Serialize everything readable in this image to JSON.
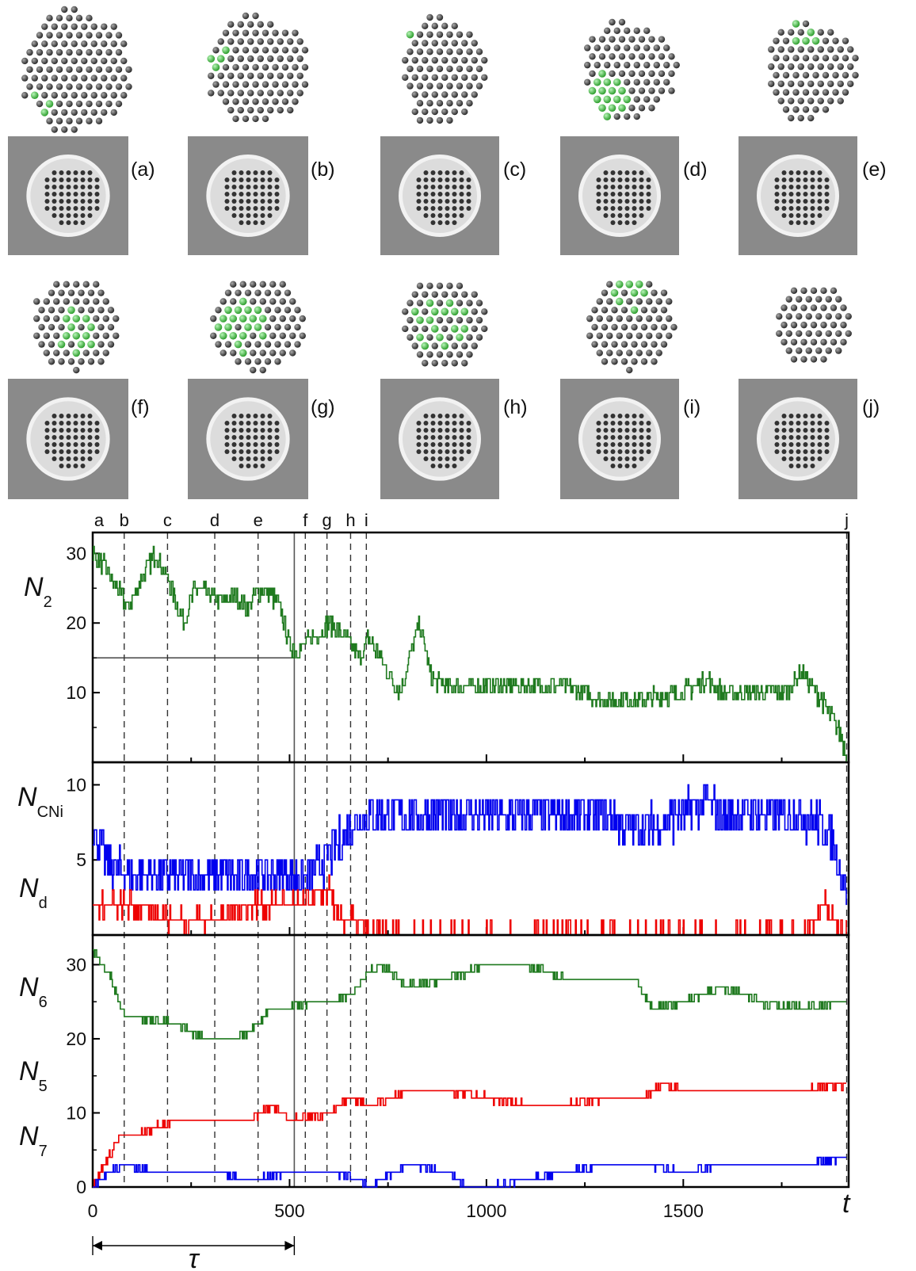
{
  "colors": {
    "N2": "#1f7a1f",
    "NCNi": "#0000ee",
    "Nd": "#ee0000",
    "N6": "#1f7a1f",
    "N5": "#ee0000",
    "N7": "#0000ee",
    "atom_carbon": "#555555",
    "atom_nickel": "#55cc55",
    "tem_background": "#8a8a8a"
  },
  "panels": [
    {
      "label": "(a)"
    },
    {
      "label": "(b)"
    },
    {
      "label": "(c)"
    },
    {
      "label": "(d)"
    },
    {
      "label": "(e)"
    },
    {
      "label": "(f)"
    },
    {
      "label": "(g)"
    },
    {
      "label": "(h)"
    },
    {
      "label": "(i)"
    },
    {
      "label": "(j)"
    }
  ],
  "chart_data": [
    {
      "type": "line",
      "xlim": [
        0,
        1920
      ],
      "xticks": [
        0,
        500,
        1000,
        1500
      ],
      "x_axis_symbol": "t",
      "event_markers": [
        {
          "label": "a",
          "x": 0
        },
        {
          "label": "b",
          "x": 80
        },
        {
          "label": "c",
          "x": 190
        },
        {
          "label": "d",
          "x": 310
        },
        {
          "label": "e",
          "x": 420
        },
        {
          "label": "f",
          "x": 540
        },
        {
          "label": "g",
          "x": 595
        },
        {
          "label": "h",
          "x": 655
        },
        {
          "label": "i",
          "x": 695
        },
        {
          "label": "j",
          "x": 1915
        }
      ],
      "tau_marker": {
        "label": "τ",
        "x_start": 0,
        "x_end": 512,
        "threshold_y": 15
      }
    },
    {
      "type": "line",
      "ylim": [
        0,
        33
      ],
      "yticks": [
        10,
        20,
        30
      ],
      "ylabel": "N",
      "ylabel_sub": "2",
      "series": [
        {
          "name": "N2",
          "color_key": "N2",
          "noise": 1.4,
          "x": [
            0,
            30,
            70,
            90,
            130,
            160,
            200,
            230,
            260,
            300,
            330,
            360,
            390,
            430,
            470,
            500,
            520,
            560,
            600,
            640,
            680,
            700,
            740,
            780,
            830,
            860,
            900,
            1000,
            1100,
            1200,
            1300,
            1400,
            1500,
            1560,
            1600,
            1700,
            1760,
            1800,
            1850,
            1900,
            1915
          ],
          "y": [
            30,
            28,
            24,
            22,
            27,
            30,
            25,
            20,
            25,
            24,
            23,
            24,
            22,
            25,
            23,
            17,
            16,
            18,
            20,
            18,
            15,
            18,
            14,
            10,
            20,
            12,
            11,
            11,
            11,
            11,
            9,
            9,
            10,
            12,
            10,
            10,
            10,
            13,
            9,
            4,
            1
          ]
        }
      ]
    },
    {
      "type": "line",
      "ylim": [
        0,
        11.5
      ],
      "yticks": [
        5,
        10
      ],
      "ylabel_top": "N",
      "ylabel_top_sub": "CNi",
      "ylabel_bottom": "N",
      "ylabel_bottom_sub": "d",
      "series": [
        {
          "name": "NCNi",
          "color_key": "NCNi",
          "noise": 1.4,
          "x": [
            0,
            30,
            80,
            120,
            200,
            300,
            400,
            500,
            560,
            620,
            680,
            700,
            800,
            900,
            1000,
            1100,
            1200,
            1300,
            1380,
            1500,
            1560,
            1600,
            1700,
            1800,
            1870,
            1915
          ],
          "y": [
            7,
            5,
            4,
            4,
            4,
            4,
            4,
            4,
            4,
            6,
            8,
            8,
            8,
            8,
            8,
            8,
            8,
            8,
            7,
            8,
            9,
            8,
            8,
            8,
            7,
            3
          ]
        },
        {
          "name": "Nd",
          "color_key": "Nd",
          "noise": 0.7,
          "x": [
            0,
            60,
            100,
            200,
            250,
            300,
            400,
            450,
            540,
            600,
            620,
            660,
            700,
            1000,
            1500,
            1800,
            1860,
            1880,
            1915
          ],
          "y": [
            2,
            2,
            2,
            1,
            1,
            1,
            2,
            2,
            2,
            3,
            1,
            1,
            0,
            0,
            0,
            0,
            2,
            1,
            0
          ]
        }
      ]
    },
    {
      "type": "line",
      "ylim": [
        0,
        34
      ],
      "yticks": [
        0,
        10,
        20,
        30
      ],
      "labels": [
        {
          "text": "N",
          "sub": "6"
        },
        {
          "text": "N",
          "sub": "5"
        },
        {
          "text": "N",
          "sub": "7"
        }
      ],
      "series": [
        {
          "name": "N6",
          "color_key": "N6",
          "noise": 0.5,
          "x": [
            0,
            40,
            80,
            120,
            200,
            250,
            300,
            360,
            400,
            450,
            500,
            560,
            600,
            660,
            700,
            730,
            800,
            900,
            1000,
            1100,
            1200,
            1300,
            1380,
            1420,
            1500,
            1600,
            1700,
            1800,
            1915
          ],
          "y": [
            32,
            29,
            23,
            23,
            22,
            21,
            20,
            20,
            21,
            24,
            24,
            25,
            25,
            26,
            29,
            30,
            27,
            28,
            30,
            30,
            28,
            28,
            28,
            24,
            25,
            27,
            25,
            24,
            25
          ]
        },
        {
          "name": "N5",
          "color_key": "N5",
          "noise": 0.5,
          "x": [
            0,
            30,
            70,
            120,
            200,
            300,
            400,
            450,
            500,
            600,
            660,
            700,
            760,
            800,
            900,
            1000,
            1100,
            1200,
            1300,
            1400,
            1450,
            1500,
            1600,
            1700,
            1800,
            1915
          ],
          "y": [
            0,
            3,
            7,
            7,
            9,
            9,
            9,
            11,
            9,
            10,
            12,
            11,
            12,
            13,
            13,
            12,
            11,
            11,
            12,
            12,
            14,
            13,
            13,
            13,
            13,
            14
          ]
        },
        {
          "name": "N7",
          "color_key": "N7",
          "noise": 0.3,
          "x": [
            0,
            40,
            80,
            160,
            300,
            400,
            500,
            600,
            680,
            700,
            800,
            900,
            950,
            1000,
            1100,
            1200,
            1300,
            1400,
            1500,
            1600,
            1700,
            1800,
            1915
          ],
          "y": [
            0,
            2,
            3,
            2,
            2,
            1,
            2,
            2,
            1,
            0,
            3,
            2,
            0,
            0,
            1,
            2,
            3,
            3,
            2,
            3,
            3,
            3,
            4
          ]
        }
      ]
    }
  ]
}
